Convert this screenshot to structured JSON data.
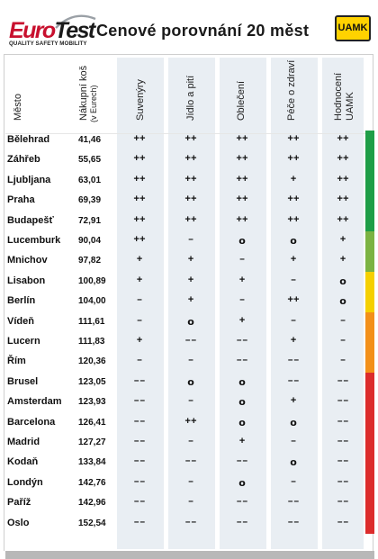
{
  "header": {
    "logo_left_euro": "Euro",
    "logo_left_test": "Test",
    "logo_tagline": "QUALITY SAFETY MOBILITY",
    "title": "Cenové porovnání 20 měst",
    "logo_right": "UAMK"
  },
  "columns": {
    "city": "Město",
    "basket": "Nákupní koš",
    "basket_unit": "(v Eurech)",
    "souvenirs": "Suvenýry",
    "food": "Jídlo a pití",
    "clothing": "Oblečení",
    "health": "Péče o zdraví",
    "rating": "Hodnocení",
    "rating2": "UAMK"
  },
  "rows": [
    {
      "city": "Bělehrad",
      "price": "41,46",
      "s": "++",
      "f": "++",
      "c": "++",
      "h": "++",
      "r": "++"
    },
    {
      "city": "Záhřeb",
      "price": "55,65",
      "s": "++",
      "f": "++",
      "c": "++",
      "h": "++",
      "r": "++"
    },
    {
      "city": "Ljubljana",
      "price": "63,01",
      "s": "++",
      "f": "++",
      "c": "++",
      "h": "+",
      "r": "++"
    },
    {
      "city": "Praha",
      "price": "69,39",
      "s": "++",
      "f": "++",
      "c": "++",
      "h": "++",
      "r": "++"
    },
    {
      "city": "Budapešť",
      "price": "72,91",
      "s": "++",
      "f": "++",
      "c": "++",
      "h": "++",
      "r": "++"
    },
    {
      "city": "Lucemburk",
      "price": "90,04",
      "s": "++",
      "f": "–",
      "c": "o",
      "h": "o",
      "r": "+"
    },
    {
      "city": "Mnichov",
      "price": "97,82",
      "s": "+",
      "f": "+",
      "c": "–",
      "h": "+",
      "r": "+"
    },
    {
      "city": "Lisabon",
      "price": "100,89",
      "s": "+",
      "f": "+",
      "c": "+",
      "h": "–",
      "r": "o"
    },
    {
      "city": "Berlín",
      "price": "104,00",
      "s": "–",
      "f": "+",
      "c": "–",
      "h": "++",
      "r": "o"
    },
    {
      "city": "Vídeň",
      "price": "111,61",
      "s": "–",
      "f": "o",
      "c": "+",
      "h": "–",
      "r": "–"
    },
    {
      "city": "Lucern",
      "price": "111,83",
      "s": "+",
      "f": "––",
      "c": "––",
      "h": "+",
      "r": "–"
    },
    {
      "city": "Řím",
      "price": "120,36",
      "s": "–",
      "f": "–",
      "c": "––",
      "h": "––",
      "r": "–"
    },
    {
      "city": "Brusel",
      "price": "123,05",
      "s": "––",
      "f": "o",
      "c": "o",
      "h": "––",
      "r": "––"
    },
    {
      "city": "Amsterdam",
      "price": "123,93",
      "s": "––",
      "f": "–",
      "c": "o",
      "h": "+",
      "r": "––"
    },
    {
      "city": "Barcelona",
      "price": "126,41",
      "s": "––",
      "f": "++",
      "c": "o",
      "h": "o",
      "r": "––"
    },
    {
      "city": "Madrid",
      "price": "127,27",
      "s": "––",
      "f": "–",
      "c": "+",
      "h": "–",
      "r": "––"
    },
    {
      "city": "Kodaň",
      "price": "133,84",
      "s": "––",
      "f": "––",
      "c": "––",
      "h": "o",
      "r": "––"
    },
    {
      "city": "Londýn",
      "price": "142,76",
      "s": "––",
      "f": "–",
      "c": "o",
      "h": "–",
      "r": "––"
    },
    {
      "city": "Paříž",
      "price": "142,96",
      "s": "––",
      "f": "–",
      "c": "––",
      "h": "––",
      "r": "––"
    },
    {
      "city": "Oslo",
      "price": "152,54",
      "s": "––",
      "f": "––",
      "c": "––",
      "h": "––",
      "r": "––"
    }
  ],
  "rating_colors": [
    {
      "color": "#1f9e47",
      "rows": 5
    },
    {
      "color": "#7cb342",
      "rows": 2
    },
    {
      "color": "#f5d000",
      "rows": 2
    },
    {
      "color": "#f39019",
      "rows": 3
    },
    {
      "color": "#dc2c2c",
      "rows": 8
    }
  ]
}
